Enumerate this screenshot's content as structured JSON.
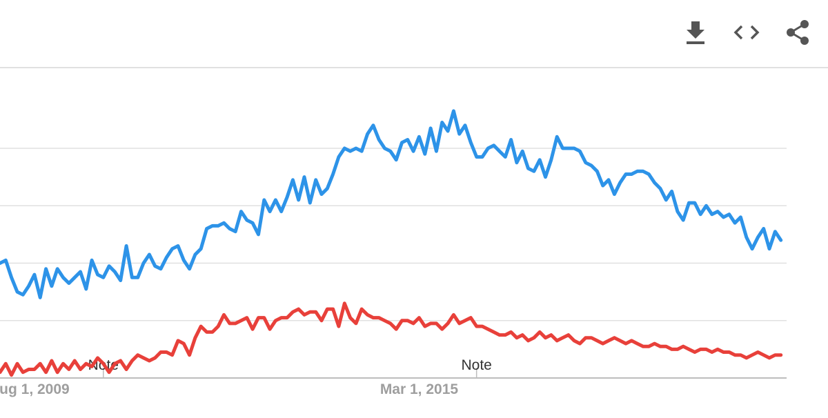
{
  "toolbar": {
    "download_icon": "download-icon",
    "embed_icon": "embed-code-icon",
    "share_icon": "share-icon"
  },
  "chart_data": {
    "type": "line",
    "x_range": [
      "2009-02-01",
      "2020-07-01"
    ],
    "ylim": [
      0,
      100
    ],
    "grid": true,
    "x_ticks": [
      {
        "label": "ug 1, 2009",
        "date": "2009-08-01"
      },
      {
        "label": "Mar 1, 2015",
        "date": "2015-03-01"
      }
    ],
    "annotations": [
      {
        "label": "Note",
        "date": "2010-08-01"
      },
      {
        "label": "Note",
        "date": "2016-01-01"
      }
    ],
    "series": [
      {
        "color": "#2d93e8",
        "x": [
          "2009-02",
          "2009-03",
          "2009-04",
          "2009-05",
          "2009-06",
          "2009-07",
          "2009-08",
          "2009-09",
          "2009-10",
          "2009-11",
          "2009-12",
          "2010-01",
          "2010-02",
          "2010-03",
          "2010-04",
          "2010-05",
          "2010-06",
          "2010-07",
          "2010-08",
          "2010-09",
          "2010-10",
          "2010-11",
          "2010-12",
          "2011-01",
          "2011-02",
          "2011-03",
          "2011-04",
          "2011-05",
          "2011-06",
          "2011-07",
          "2011-08",
          "2011-09",
          "2011-10",
          "2011-11",
          "2011-12",
          "2012-01",
          "2012-02",
          "2012-03",
          "2012-04",
          "2012-05",
          "2012-06",
          "2012-07",
          "2012-08",
          "2012-09",
          "2012-10",
          "2012-11",
          "2012-12",
          "2013-01",
          "2013-02",
          "2013-03",
          "2013-04",
          "2013-05",
          "2013-06",
          "2013-07",
          "2013-08",
          "2013-09",
          "2013-10",
          "2013-11",
          "2013-12",
          "2014-01",
          "2014-02",
          "2014-03",
          "2014-04",
          "2014-05",
          "2014-06",
          "2014-07",
          "2014-08",
          "2014-09",
          "2014-10",
          "2014-11",
          "2014-12",
          "2015-01",
          "2015-02",
          "2015-03",
          "2015-04",
          "2015-05",
          "2015-06",
          "2015-07",
          "2015-08",
          "2015-09",
          "2015-10",
          "2015-11",
          "2015-12",
          "2016-01",
          "2016-02",
          "2016-03",
          "2016-04",
          "2016-05",
          "2016-06",
          "2016-07",
          "2016-08",
          "2016-09",
          "2016-10",
          "2016-11",
          "2016-12",
          "2017-01",
          "2017-02",
          "2017-03",
          "2017-04",
          "2017-05",
          "2017-06",
          "2017-07",
          "2017-08",
          "2017-09",
          "2017-10",
          "2017-11",
          "2017-12",
          "2018-01",
          "2018-02",
          "2018-03",
          "2018-04",
          "2018-05",
          "2018-06",
          "2018-07",
          "2018-08",
          "2018-09",
          "2018-10",
          "2018-11",
          "2018-12",
          "2019-01",
          "2019-02",
          "2019-03",
          "2019-04",
          "2019-05",
          "2019-06",
          "2019-07",
          "2019-08",
          "2019-09",
          "2019-10",
          "2019-11",
          "2019-12",
          "2020-01",
          "2020-02",
          "2020-03",
          "2020-04",
          "2020-05",
          "2020-06"
        ],
        "values": [
          40,
          41,
          35,
          30,
          29,
          32,
          36,
          28,
          38,
          32,
          38,
          35,
          33,
          35,
          37,
          31,
          41,
          36,
          35,
          39,
          37,
          34,
          46,
          35,
          35,
          40,
          43,
          39,
          38,
          42,
          45,
          46,
          41,
          38,
          43,
          45,
          52,
          53,
          53,
          54,
          52,
          51,
          58,
          55,
          54,
          50,
          62,
          58,
          62,
          58,
          63,
          69,
          62,
          70,
          61,
          69,
          64,
          66,
          71,
          77,
          80,
          79,
          80,
          79,
          85,
          88,
          83,
          80,
          79,
          76,
          82,
          83,
          79,
          84,
          78,
          87,
          79,
          89,
          86,
          93,
          85,
          88,
          82,
          77,
          77,
          80,
          81,
          79,
          77,
          83,
          75,
          79,
          73,
          72,
          76,
          70,
          76,
          84,
          80,
          80,
          80,
          79,
          75,
          74,
          72,
          67,
          69,
          64,
          68,
          71,
          71,
          72,
          72,
          71,
          68,
          66,
          62,
          65,
          58,
          55,
          61,
          61,
          57,
          60,
          57,
          58,
          56,
          57,
          54,
          56,
          49,
          45,
          49,
          52,
          45,
          51,
          48
        ]
      },
      {
        "color": "#e8403a",
        "x": [
          "2009-02",
          "2009-03",
          "2009-04",
          "2009-05",
          "2009-06",
          "2009-07",
          "2009-08",
          "2009-09",
          "2009-10",
          "2009-11",
          "2009-12",
          "2010-01",
          "2010-02",
          "2010-03",
          "2010-04",
          "2010-05",
          "2010-06",
          "2010-07",
          "2010-08",
          "2010-09",
          "2010-10",
          "2010-11",
          "2010-12",
          "2011-01",
          "2011-02",
          "2011-03",
          "2011-04",
          "2011-05",
          "2011-06",
          "2011-07",
          "2011-08",
          "2011-09",
          "2011-10",
          "2011-11",
          "2011-12",
          "2012-01",
          "2012-02",
          "2012-03",
          "2012-04",
          "2012-05",
          "2012-06",
          "2012-07",
          "2012-08",
          "2012-09",
          "2012-10",
          "2012-11",
          "2012-12",
          "2013-01",
          "2013-02",
          "2013-03",
          "2013-04",
          "2013-05",
          "2013-06",
          "2013-07",
          "2013-08",
          "2013-09",
          "2013-10",
          "2013-11",
          "2013-12",
          "2014-01",
          "2014-02",
          "2014-03",
          "2014-04",
          "2014-05",
          "2014-06",
          "2014-07",
          "2014-08",
          "2014-09",
          "2014-10",
          "2014-11",
          "2014-12",
          "2015-01",
          "2015-02",
          "2015-03",
          "2015-04",
          "2015-05",
          "2015-06",
          "2015-07",
          "2015-08",
          "2015-09",
          "2015-10",
          "2015-11",
          "2015-12",
          "2016-01",
          "2016-02",
          "2016-03",
          "2016-04",
          "2016-05",
          "2016-06",
          "2016-07",
          "2016-08",
          "2016-09",
          "2016-10",
          "2016-11",
          "2016-12",
          "2017-01",
          "2017-02",
          "2017-03",
          "2017-04",
          "2017-05",
          "2017-06",
          "2017-07",
          "2017-08",
          "2017-09",
          "2017-10",
          "2017-11",
          "2017-12",
          "2018-01",
          "2018-02",
          "2018-03",
          "2018-04",
          "2018-05",
          "2018-06",
          "2018-07",
          "2018-08",
          "2018-09",
          "2018-10",
          "2018-11",
          "2018-12",
          "2019-01",
          "2019-02",
          "2019-03",
          "2019-04",
          "2019-05",
          "2019-06",
          "2019-07",
          "2019-08",
          "2019-09",
          "2019-10",
          "2019-11",
          "2019-12",
          "2020-01",
          "2020-02",
          "2020-03",
          "2020-04",
          "2020-05",
          "2020-06"
        ],
        "values": [
          2,
          5,
          1,
          5,
          2,
          3,
          3,
          5,
          2,
          6,
          2,
          5,
          3,
          6,
          3,
          5,
          4,
          7,
          5,
          2,
          5,
          6,
          3,
          6,
          8,
          7,
          6,
          7,
          9,
          9,
          8,
          13,
          12,
          8,
          14,
          18,
          16,
          16,
          18,
          22,
          19,
          19,
          20,
          21,
          17,
          21,
          21,
          17,
          20,
          21,
          21,
          23,
          24,
          22,
          23,
          23,
          20,
          24,
          24,
          18,
          26,
          21,
          19,
          24,
          22,
          21,
          21,
          20,
          19,
          17,
          20,
          20,
          19,
          21,
          18,
          19,
          19,
          17,
          19,
          22,
          19,
          20,
          21,
          18,
          18,
          17,
          16,
          15,
          15,
          16,
          14,
          15,
          13,
          14,
          16,
          14,
          15,
          13,
          14,
          15,
          13,
          12,
          14,
          14,
          13,
          12,
          13,
          14,
          13,
          12,
          13,
          12,
          11,
          11,
          12,
          11,
          11,
          10,
          10,
          11,
          10,
          9,
          10,
          10,
          9,
          10,
          9,
          9,
          8,
          8,
          7,
          8,
          9,
          8,
          7,
          8,
          8
        ]
      }
    ]
  }
}
